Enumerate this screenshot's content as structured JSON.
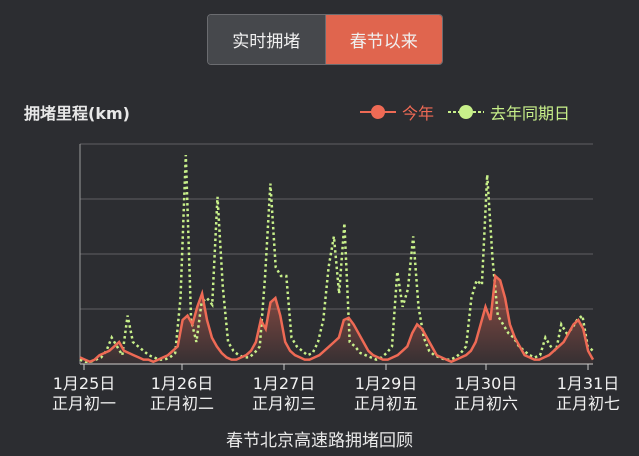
{
  "tabs": {
    "realtime": "实时拥堵",
    "spring": "春节以来"
  },
  "chart_data": {
    "type": "line",
    "ylabel": "拥堵里程(km)",
    "subtitle": "春节北京高速路拥堵回顾",
    "x_ticks": [
      {
        "date": "1月25日",
        "lunar": "正月初一"
      },
      {
        "date": "1月26日",
        "lunar": "正月初二"
      },
      {
        "date": "1月27日",
        "lunar": "正月初三"
      },
      {
        "date": "1月29日",
        "lunar": "正月初五"
      },
      {
        "date": "1月30日",
        "lunar": "正月初六"
      },
      {
        "date": "1月31日",
        "lunar": "正月初七"
      }
    ],
    "ylim": [
      0,
      100
    ],
    "series": [
      {
        "name": "今年",
        "color": "#ee6a55",
        "values": [
          3,
          2,
          1,
          2,
          4,
          5,
          6,
          8,
          10,
          6,
          5,
          4,
          3,
          2,
          2,
          1,
          2,
          3,
          4,
          6,
          8,
          20,
          22,
          18,
          26,
          32,
          20,
          12,
          8,
          5,
          3,
          2,
          2,
          3,
          4,
          6,
          10,
          20,
          16,
          28,
          30,
          22,
          10,
          6,
          4,
          3,
          2,
          2,
          3,
          4,
          6,
          8,
          10,
          12,
          20,
          21,
          18,
          14,
          10,
          6,
          4,
          3,
          2,
          2,
          3,
          4,
          6,
          8,
          14,
          18,
          16,
          12,
          8,
          4,
          3,
          2,
          1,
          2,
          3,
          4,
          6,
          10,
          18,
          26,
          20,
          40,
          38,
          30,
          18,
          12,
          8,
          4,
          3,
          2,
          2,
          3,
          4,
          6,
          8,
          10,
          14,
          18,
          20,
          16,
          6,
          2
        ]
      },
      {
        "name": "去年同期日",
        "color": "#c8f08a",
        "values": [
          2,
          1,
          1,
          2,
          3,
          6,
          12,
          8,
          4,
          22,
          10,
          8,
          6,
          4,
          3,
          2,
          2,
          3,
          5,
          30,
          95,
          20,
          10,
          28,
          30,
          27,
          76,
          35,
          10,
          6,
          4,
          3,
          3,
          5,
          8,
          40,
          82,
          44,
          40,
          40,
          12,
          8,
          6,
          4,
          5,
          10,
          20,
          44,
          58,
          32,
          64,
          10,
          8,
          5,
          4,
          3,
          2,
          3,
          5,
          8,
          42,
          26,
          34,
          58,
          26,
          12,
          6,
          4,
          3,
          2,
          2,
          3,
          5,
          8,
          30,
          38,
          36,
          86,
          48,
          22,
          18,
          14,
          12,
          8,
          6,
          4,
          3,
          4,
          12,
          8,
          6,
          18,
          14,
          16,
          20,
          22,
          8,
          6
        ],
        "dots": [
          2,
          1,
          1,
          2,
          3,
          6,
          12,
          8,
          4,
          22,
          10,
          8,
          6,
          4,
          3,
          2,
          2,
          3,
          5,
          30,
          95,
          20,
          10,
          28,
          30,
          27,
          76,
          35,
          10,
          6,
          4,
          3,
          3,
          5,
          8,
          40,
          82,
          44,
          40,
          40,
          12,
          8,
          6,
          4,
          5,
          10,
          20,
          44,
          58,
          32,
          64,
          10,
          8,
          5,
          4,
          3,
          2,
          3,
          5,
          8,
          42,
          26,
          34,
          58,
          26,
          12,
          6,
          4,
          3,
          2,
          2,
          3,
          5,
          8,
          30,
          38,
          36,
          86,
          48,
          22,
          18,
          14,
          12,
          8,
          6,
          4,
          3,
          4,
          12,
          8,
          6,
          18,
          14,
          16,
          20,
          22,
          8,
          6
        ]
      }
    ]
  }
}
